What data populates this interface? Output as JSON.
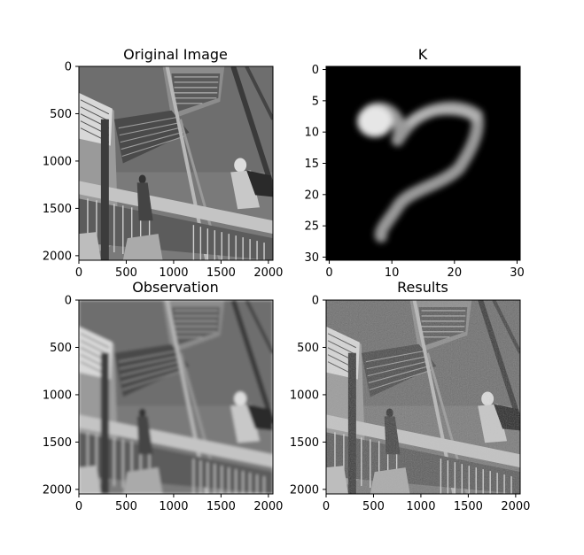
{
  "chart_data": [
    {
      "type": "heatmap",
      "title": "Original Image",
      "content": "grayscale photograph of a staircase with a person",
      "x_ticks": [
        "0",
        "500",
        "1000",
        "1500",
        "2000"
      ],
      "y_ticks": [
        "0",
        "500",
        "1000",
        "1500",
        "2000"
      ],
      "xlim": [
        0,
        2048
      ],
      "ylim": [
        2048,
        0
      ]
    },
    {
      "type": "heatmap",
      "title": "K",
      "content": "blur kernel: bright curved stroke on black background",
      "x_ticks": [
        "0",
        "10",
        "20",
        "30"
      ],
      "y_ticks": [
        "0",
        "5",
        "10",
        "15",
        "20",
        "25",
        "30"
      ],
      "xlim": [
        -0.5,
        30.5
      ],
      "ylim": [
        30.5,
        -0.5
      ]
    },
    {
      "type": "heatmap",
      "title": "Observation",
      "content": "blurred grayscale photograph",
      "x_ticks": [
        "0",
        "500",
        "1000",
        "1500",
        "2000"
      ],
      "y_ticks": [
        "0",
        "500",
        "1000",
        "1500",
        "2000"
      ],
      "xlim": [
        0,
        2048
      ],
      "ylim": [
        2048,
        0
      ]
    },
    {
      "type": "heatmap",
      "title": "Results",
      "content": "deblurred grayscale photograph with noise",
      "x_ticks": [
        "0",
        "500",
        "1000",
        "1500",
        "2000"
      ],
      "y_ticks": [
        "0",
        "500",
        "1000",
        "1500",
        "2000"
      ],
      "xlim": [
        0,
        2048
      ],
      "ylim": [
        2048,
        0
      ]
    }
  ]
}
